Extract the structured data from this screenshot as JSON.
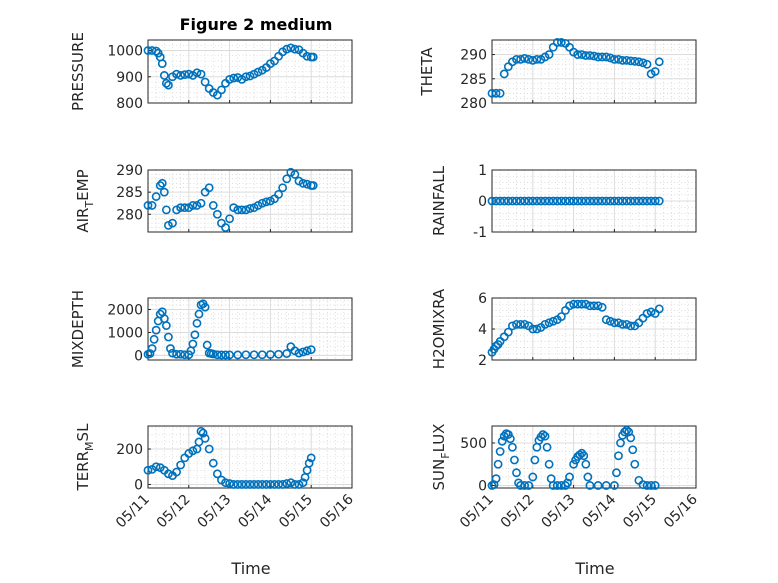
{
  "figure": {
    "title": "Figure 2 medium",
    "marker_color": "#0072BD"
  },
  "chart_data": [
    {
      "id": "pressure",
      "type": "scatter",
      "ylabel": "PRESSURE",
      "ylim": [
        800,
        1040
      ],
      "yticks": [
        800,
        900,
        1000
      ],
      "xlim": [
        "05/11",
        "05/16"
      ],
      "xticks": [
        "05/11",
        "05/12",
        "05/13",
        "05/14",
        "05/15",
        "05/16"
      ],
      "grid": true,
      "x": [
        0.0,
        0.1,
        0.2,
        0.25,
        0.3,
        0.35,
        0.4,
        0.45,
        0.5,
        0.6,
        0.7,
        0.8,
        0.9,
        1.0,
        1.1,
        1.2,
        1.3,
        1.4,
        1.5,
        1.6,
        1.7,
        1.8,
        1.9,
        2.0,
        2.1,
        2.2,
        2.3,
        2.4,
        2.5,
        2.6,
        2.7,
        2.8,
        2.9,
        3.0,
        3.1,
        3.2,
        3.3,
        3.4,
        3.5,
        3.6,
        3.7,
        3.8,
        3.9,
        4.0,
        4.05
      ],
      "values": [
        1000,
        1000,
        998,
        990,
        975,
        950,
        905,
        875,
        868,
        900,
        910,
        905,
        908,
        910,
        905,
        915,
        910,
        880,
        855,
        840,
        830,
        850,
        875,
        890,
        895,
        897,
        890,
        900,
        903,
        910,
        918,
        925,
        935,
        950,
        960,
        978,
        995,
        1005,
        1010,
        1005,
        1003,
        990,
        978,
        975,
        975
      ]
    },
    {
      "id": "theta",
      "type": "scatter",
      "ylabel": "THETA",
      "ylim": [
        280,
        293
      ],
      "yticks": [
        280,
        285,
        290
      ],
      "xlim": [
        "05/11",
        "05/16"
      ],
      "xticks": [
        "05/11",
        "05/12",
        "05/13",
        "05/14",
        "05/15",
        "05/16"
      ],
      "grid": true,
      "x": [
        0.0,
        0.1,
        0.2,
        0.3,
        0.4,
        0.5,
        0.6,
        0.7,
        0.8,
        0.9,
        1.0,
        1.1,
        1.2,
        1.3,
        1.4,
        1.5,
        1.6,
        1.7,
        1.8,
        1.9,
        2.0,
        2.1,
        2.2,
        2.3,
        2.4,
        2.5,
        2.6,
        2.7,
        2.8,
        2.9,
        3.0,
        3.1,
        3.2,
        3.3,
        3.4,
        3.5,
        3.6,
        3.7,
        3.8,
        3.9,
        4.0,
        4.1
      ],
      "values": [
        282,
        282,
        282,
        286,
        287.5,
        288.5,
        289,
        289,
        289.2,
        289,
        288.8,
        289,
        289,
        289.5,
        290,
        291.5,
        292.5,
        292.5,
        292.3,
        291.5,
        290.5,
        290,
        290,
        289.8,
        289.8,
        289.7,
        289.5,
        289.5,
        289.5,
        289.3,
        289,
        289,
        288.8,
        288.8,
        288.7,
        288.6,
        288.5,
        288.3,
        288,
        286,
        286.5,
        288.5
      ]
    },
    {
      "id": "air_temp",
      "type": "scatter",
      "ylabel_main": "AIR",
      "ylabel_sub": "T",
      "ylabel_rest": "EMP",
      "ylim": [
        276,
        290
      ],
      "yticks": [
        280,
        285,
        290
      ],
      "xlim": [
        "05/11",
        "05/16"
      ],
      "xticks": [
        "05/11",
        "05/12",
        "05/13",
        "05/14",
        "05/15",
        "05/16"
      ],
      "grid": true,
      "x": [
        0.0,
        0.1,
        0.2,
        0.3,
        0.35,
        0.4,
        0.45,
        0.5,
        0.6,
        0.7,
        0.8,
        0.9,
        1.0,
        1.1,
        1.2,
        1.3,
        1.4,
        1.5,
        1.6,
        1.7,
        1.8,
        1.9,
        2.0,
        2.1,
        2.2,
        2.3,
        2.4,
        2.5,
        2.6,
        2.7,
        2.8,
        2.9,
        3.0,
        3.1,
        3.2,
        3.3,
        3.4,
        3.5,
        3.6,
        3.7,
        3.8,
        3.9,
        4.0,
        4.05
      ],
      "values": [
        282,
        282,
        284,
        286.5,
        287,
        285,
        281,
        277.5,
        278,
        281,
        281.5,
        281.5,
        281.5,
        282,
        282,
        282.5,
        285,
        286,
        282,
        280,
        278,
        277,
        279,
        281.5,
        281,
        281,
        281,
        281.3,
        281.5,
        282,
        282.5,
        282.8,
        283,
        283.5,
        284.5,
        286,
        288,
        289.5,
        289,
        287.5,
        287,
        286.8,
        286.5,
        286.5
      ]
    },
    {
      "id": "rainfall",
      "type": "scatter",
      "ylabel": "RAINFALL",
      "ylim": [
        -1,
        1
      ],
      "yticks": [
        -1,
        0,
        1
      ],
      "xlim": [
        "05/11",
        "05/16"
      ],
      "xticks": [
        "05/11",
        "05/12",
        "05/13",
        "05/14",
        "05/15",
        "05/16"
      ],
      "grid": true,
      "x": [
        0.0,
        0.1,
        0.2,
        0.3,
        0.4,
        0.5,
        0.6,
        0.7,
        0.8,
        0.9,
        1.0,
        1.1,
        1.2,
        1.3,
        1.4,
        1.5,
        1.6,
        1.7,
        1.8,
        1.9,
        2.0,
        2.1,
        2.2,
        2.3,
        2.4,
        2.5,
        2.6,
        2.7,
        2.8,
        2.9,
        3.0,
        3.1,
        3.2,
        3.3,
        3.4,
        3.5,
        3.6,
        3.7,
        3.8,
        3.9,
        4.0,
        4.1
      ],
      "values": [
        0,
        0,
        0,
        0,
        0,
        0,
        0,
        0,
        0,
        0,
        0,
        0,
        0,
        0,
        0,
        0,
        0,
        0,
        0,
        0,
        0,
        0,
        0,
        0,
        0,
        0,
        0,
        0,
        0,
        0,
        0,
        0,
        0,
        0,
        0,
        0,
        0,
        0,
        0,
        0,
        0,
        0
      ]
    },
    {
      "id": "mixdepth",
      "type": "scatter",
      "ylabel": "MIXDEPTH",
      "ylim": [
        -200,
        2500
      ],
      "yticks": [
        0,
        1000,
        2000
      ],
      "xlim": [
        "05/11",
        "05/16"
      ],
      "xticks": [
        "05/11",
        "05/12",
        "05/13",
        "05/14",
        "05/15",
        "05/16"
      ],
      "grid": true,
      "x": [
        0.0,
        0.05,
        0.1,
        0.15,
        0.2,
        0.25,
        0.3,
        0.35,
        0.4,
        0.45,
        0.5,
        0.55,
        0.6,
        0.7,
        0.8,
        0.9,
        1.0,
        1.05,
        1.1,
        1.15,
        1.2,
        1.25,
        1.3,
        1.35,
        1.4,
        1.45,
        1.5,
        1.55,
        1.6,
        1.7,
        1.8,
        1.9,
        2.0,
        2.2,
        2.4,
        2.6,
        2.8,
        3.0,
        3.2,
        3.4,
        3.5,
        3.6,
        3.7,
        3.8,
        3.9,
        4.0
      ],
      "values": [
        50,
        80,
        300,
        700,
        1100,
        1500,
        1800,
        1900,
        1600,
        1300,
        800,
        300,
        100,
        50,
        50,
        30,
        30,
        200,
        500,
        900,
        1400,
        1800,
        2200,
        2250,
        2100,
        450,
        100,
        80,
        60,
        30,
        20,
        20,
        20,
        20,
        30,
        30,
        30,
        40,
        50,
        80,
        380,
        200,
        100,
        150,
        200,
        250
      ]
    },
    {
      "id": "h2omixra",
      "type": "scatter",
      "ylabel": "H2OMIXRA",
      "ylim": [
        2,
        6
      ],
      "yticks": [
        2,
        4,
        6
      ],
      "xlim": [
        "05/11",
        "05/16"
      ],
      "xticks": [
        "05/11",
        "05/12",
        "05/13",
        "05/14",
        "05/15",
        "05/16"
      ],
      "grid": true,
      "x": [
        0.0,
        0.05,
        0.1,
        0.15,
        0.2,
        0.3,
        0.4,
        0.5,
        0.6,
        0.7,
        0.8,
        0.9,
        1.0,
        1.1,
        1.2,
        1.3,
        1.4,
        1.5,
        1.6,
        1.7,
        1.8,
        1.9,
        2.0,
        2.1,
        2.2,
        2.3,
        2.4,
        2.5,
        2.6,
        2.7,
        2.8,
        2.9,
        3.0,
        3.1,
        3.2,
        3.3,
        3.4,
        3.5,
        3.6,
        3.7,
        3.8,
        3.9,
        4.0,
        4.1
      ],
      "values": [
        2.5,
        2.7,
        2.9,
        3.0,
        3.2,
        3.5,
        3.8,
        4.2,
        4.3,
        4.3,
        4.3,
        4.2,
        4.0,
        4.0,
        4.1,
        4.3,
        4.4,
        4.5,
        4.6,
        4.8,
        5.2,
        5.5,
        5.6,
        5.6,
        5.6,
        5.6,
        5.5,
        5.5,
        5.5,
        5.4,
        4.6,
        4.5,
        4.4,
        4.4,
        4.3,
        4.3,
        4.2,
        4.2,
        4.4,
        4.7,
        5.0,
        5.1,
        5.0,
        5.3
      ]
    },
    {
      "id": "terr_msl",
      "type": "scatter",
      "ylabel_main": "TERR",
      "ylabel_sub": "M",
      "ylabel_rest": "SL",
      "ylim": [
        -20,
        330
      ],
      "yticks": [
        0,
        200
      ],
      "xlim": [
        "05/11",
        "05/16"
      ],
      "xticks": [
        "05/11",
        "05/12",
        "05/13",
        "05/14",
        "05/15",
        "05/16"
      ],
      "grid": true,
      "x": [
        0.0,
        0.1,
        0.2,
        0.3,
        0.4,
        0.5,
        0.6,
        0.7,
        0.8,
        0.9,
        1.0,
        1.1,
        1.2,
        1.25,
        1.3,
        1.35,
        1.4,
        1.5,
        1.6,
        1.7,
        1.8,
        1.9,
        2.0,
        2.1,
        2.2,
        2.3,
        2.4,
        2.5,
        2.6,
        2.7,
        2.8,
        2.9,
        3.0,
        3.1,
        3.2,
        3.3,
        3.4,
        3.5,
        3.6,
        3.7,
        3.8,
        3.85,
        3.9,
        3.95,
        4.0
      ],
      "values": [
        80,
        85,
        100,
        95,
        80,
        60,
        50,
        70,
        110,
        150,
        175,
        190,
        200,
        240,
        300,
        290,
        260,
        200,
        120,
        60,
        25,
        10,
        5,
        0,
        0,
        0,
        0,
        0,
        0,
        0,
        0,
        0,
        0,
        0,
        0,
        0,
        5,
        10,
        0,
        0,
        10,
        40,
        80,
        120,
        150
      ]
    },
    {
      "id": "sun_flux",
      "type": "scatter",
      "ylabel_main": "SUN",
      "ylabel_sub": "F",
      "ylabel_rest": "LUX",
      "ylim": [
        -30,
        700
      ],
      "yticks": [
        0,
        500
      ],
      "xlim": [
        "05/11",
        "05/16"
      ],
      "xticks": [
        "05/11",
        "05/12",
        "05/13",
        "05/14",
        "05/15",
        "05/16"
      ],
      "grid": true,
      "x": [
        0.0,
        0.05,
        0.1,
        0.15,
        0.2,
        0.25,
        0.3,
        0.35,
        0.4,
        0.45,
        0.5,
        0.55,
        0.6,
        0.65,
        0.7,
        0.8,
        0.9,
        1.0,
        1.05,
        1.1,
        1.15,
        1.2,
        1.25,
        1.3,
        1.35,
        1.4,
        1.45,
        1.5,
        1.6,
        1.7,
        1.8,
        1.85,
        1.9,
        2.0,
        2.05,
        2.1,
        2.15,
        2.2,
        2.25,
        2.3,
        2.35,
        2.4,
        2.6,
        2.8,
        3.0,
        3.05,
        3.1,
        3.15,
        3.2,
        3.25,
        3.3,
        3.35,
        3.4,
        3.45,
        3.5,
        3.6,
        3.7,
        3.8,
        3.9,
        4.0
      ],
      "values": [
        0,
        10,
        80,
        250,
        400,
        520,
        580,
        610,
        600,
        550,
        450,
        300,
        150,
        30,
        0,
        0,
        0,
        100,
        300,
        450,
        530,
        570,
        600,
        580,
        450,
        250,
        80,
        0,
        0,
        0,
        0,
        30,
        100,
        250,
        300,
        340,
        360,
        380,
        350,
        250,
        100,
        0,
        0,
        0,
        0,
        150,
        350,
        500,
        590,
        630,
        650,
        630,
        560,
        420,
        250,
        60,
        10,
        0,
        0,
        0
      ]
    }
  ],
  "xlabel": "Time"
}
